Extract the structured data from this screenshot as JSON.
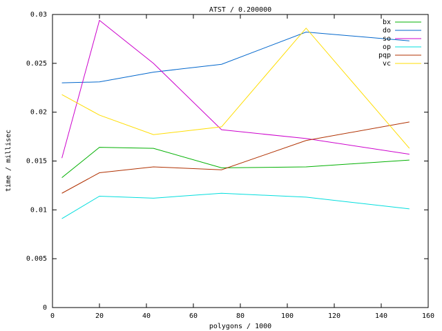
{
  "chart_data": {
    "type": "line",
    "title": "ATST / 0.200000",
    "x_label": "polygons / 1000",
    "y_label": "time / millisec",
    "x": [
      4,
      20,
      43,
      72,
      108,
      152
    ],
    "series": [
      {
        "name": "bx",
        "color": "#00b000",
        "values": [
          0.0133,
          0.0164,
          0.0163,
          0.0143,
          0.0144,
          0.0151
        ]
      },
      {
        "name": "do",
        "color": "#0066cc",
        "values": [
          0.023,
          0.0231,
          0.0241,
          0.0249,
          0.0282,
          0.0273
        ]
      },
      {
        "name": "so",
        "color": "#cc00cc",
        "values": [
          0.0153,
          0.0294,
          0.025,
          0.0182,
          0.0173,
          0.0157
        ]
      },
      {
        "name": "op",
        "color": "#00dddd",
        "values": [
          0.0091,
          0.0114,
          0.0112,
          0.0117,
          0.0113,
          0.0101
        ]
      },
      {
        "name": "pqp",
        "color": "#b03000",
        "values": [
          0.0117,
          0.0138,
          0.0144,
          0.0141,
          0.0171,
          0.019
        ]
      },
      {
        "name": "vc",
        "color": "#ffdd00",
        "values": [
          0.0218,
          0.0197,
          0.0177,
          0.0185,
          0.0286,
          0.0163
        ]
      }
    ],
    "xlim": [
      0,
      160
    ],
    "xticks": [
      0,
      20,
      40,
      60,
      80,
      100,
      120,
      140,
      160
    ],
    "ylim": [
      0,
      0.03
    ],
    "yticks": [
      0,
      0.005,
      0.01,
      0.015,
      0.02,
      0.025,
      0.03
    ],
    "legend": "top-right",
    "grid": false
  }
}
